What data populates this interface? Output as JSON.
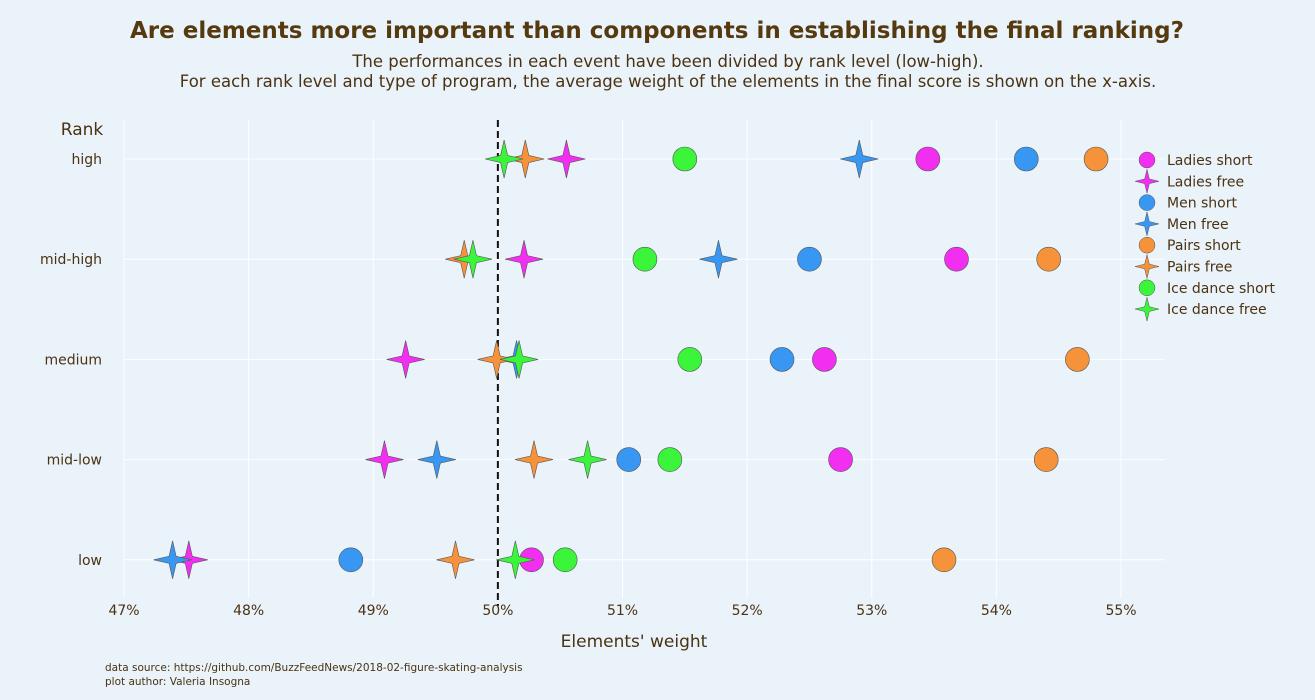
{
  "chart_data": {
    "type": "scatter",
    "title": "Are elements more important than components in establishing the final ranking?",
    "subtitle_lines": [
      "The performances in each event have been divided by rank level (low-high).",
      "For each rank level and type of program, the average weight of the elements in the final score is shown on the x-axis."
    ],
    "xlabel": "Elements' weight",
    "ylabel": "Rank",
    "xlim": [
      47,
      55
    ],
    "x_ticks": [
      47,
      48,
      49,
      50,
      51,
      52,
      53,
      54,
      55
    ],
    "x_tick_labels": [
      "47%",
      "48%",
      "49%",
      "50%",
      "51%",
      "52%",
      "53%",
      "54%",
      "55%"
    ],
    "categories": [
      "high",
      "mid-high",
      "medium",
      "mid-low",
      "low"
    ],
    "reference_line_x": 50,
    "grid": true,
    "legend_position": "right",
    "series": [
      {
        "name": "Ladies short",
        "marker": "circle",
        "color": "#f22ff0",
        "values": [
          53.45,
          53.68,
          52.62,
          52.75,
          50.27
        ]
      },
      {
        "name": "Ladies free",
        "marker": "star",
        "color": "#f22ff0",
        "values": [
          50.55,
          50.21,
          49.26,
          49.09,
          47.52
        ]
      },
      {
        "name": "Men short",
        "marker": "circle",
        "color": "#3797f3",
        "values": [
          54.24,
          52.5,
          52.28,
          51.05,
          48.82
        ]
      },
      {
        "name": "Men free",
        "marker": "star",
        "color": "#3797f3",
        "values": [
          52.9,
          51.77,
          50.15,
          49.51,
          47.39
        ]
      },
      {
        "name": "Pairs short",
        "marker": "circle",
        "color": "#f6923a",
        "values": [
          54.8,
          54.42,
          54.65,
          54.4,
          53.58
        ]
      },
      {
        "name": "Pairs free",
        "marker": "star",
        "color": "#f6923a",
        "values": [
          50.22,
          49.73,
          49.99,
          50.29,
          49.66
        ]
      },
      {
        "name": "Ice dance short",
        "marker": "circle",
        "color": "#3af53a",
        "values": [
          51.5,
          51.18,
          51.54,
          51.38,
          50.54
        ]
      },
      {
        "name": "Ice dance free",
        "marker": "star",
        "color": "#3af53a",
        "values": [
          50.05,
          49.8,
          50.17,
          50.72,
          50.14
        ]
      }
    ]
  },
  "footer": {
    "source": "data source: https://github.com/BuzzFeedNews/2018-02-figure-skating-analysis",
    "author": "plot author: Valeria Insogna"
  },
  "colors": {
    "background": "#eaf2fa",
    "text": "#4a3312",
    "grid": "#ffffff",
    "reference_line": "#111111"
  }
}
